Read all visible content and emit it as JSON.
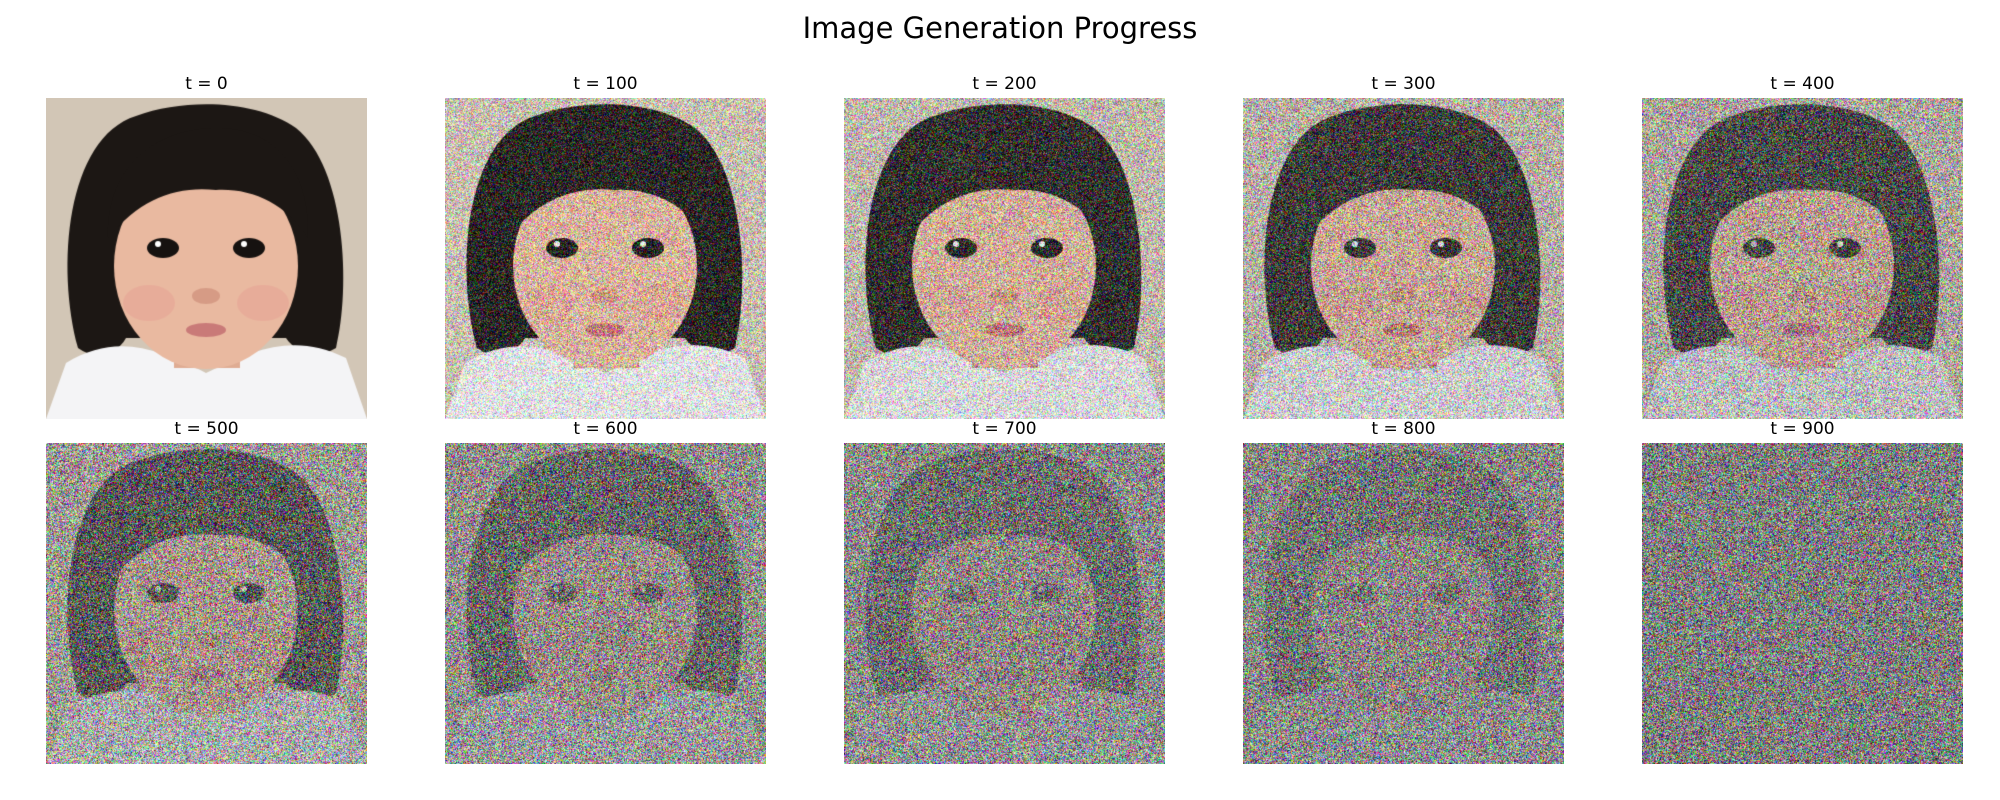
{
  "figure": {
    "title": "Image Generation Progress"
  },
  "panels": [
    {
      "label": "t = 0",
      "noise_level": 0.0
    },
    {
      "label": "t = 100",
      "noise_level": 0.35
    },
    {
      "label": "t = 200",
      "noise_level": 0.5
    },
    {
      "label": "t = 300",
      "noise_level": 0.65
    },
    {
      "label": "t = 400",
      "noise_level": 0.78
    },
    {
      "label": "t = 500",
      "noise_level": 0.9
    },
    {
      "label": "t = 600",
      "noise_level": 0.96
    },
    {
      "label": "t = 700",
      "noise_level": 0.98
    },
    {
      "label": "t = 800",
      "noise_level": 0.99
    },
    {
      "label": "t = 900",
      "noise_level": 1.0
    }
  ],
  "colors": {
    "background": "#d2c6b6",
    "hair": "#1c1714",
    "skin": "#e9b9a0",
    "shirt": "#f4f4f6",
    "noise_mean": "#7e7e7e"
  }
}
